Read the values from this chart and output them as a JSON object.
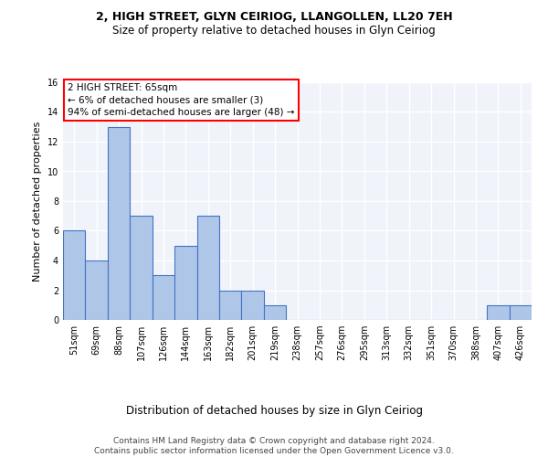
{
  "title": "2, HIGH STREET, GLYN CEIRIOG, LLANGOLLEN, LL20 7EH",
  "subtitle": "Size of property relative to detached houses in Glyn Ceiriog",
  "xlabel": "Distribution of detached houses by size in Glyn Ceiriog",
  "ylabel": "Number of detached properties",
  "bin_labels": [
    "51sqm",
    "69sqm",
    "88sqm",
    "107sqm",
    "126sqm",
    "144sqm",
    "163sqm",
    "182sqm",
    "201sqm",
    "219sqm",
    "238sqm",
    "257sqm",
    "276sqm",
    "295sqm",
    "313sqm",
    "332sqm",
    "351sqm",
    "370sqm",
    "388sqm",
    "407sqm",
    "426sqm"
  ],
  "bar_values": [
    6,
    4,
    13,
    7,
    3,
    5,
    7,
    2,
    2,
    1,
    0,
    0,
    0,
    0,
    0,
    0,
    0,
    0,
    0,
    1,
    1
  ],
  "bar_color": "#aec6e8",
  "bar_edge_color": "#4472c4",
  "ylim": [
    0,
    16
  ],
  "yticks": [
    0,
    2,
    4,
    6,
    8,
    10,
    12,
    14,
    16
  ],
  "annotation_box_text": "2 HIGH STREET: 65sqm\n← 6% of detached houses are smaller (3)\n94% of semi-detached houses are larger (48) →",
  "annotation_box_color": "#ff0000",
  "background_color": "#f0f4fa",
  "footer_text": "Contains HM Land Registry data © Crown copyright and database right 2024.\nContains public sector information licensed under the Open Government Licence v3.0.",
  "grid_color": "#ffffff",
  "title_fontsize": 9,
  "subtitle_fontsize": 8.5,
  "ylabel_fontsize": 8,
  "xlabel_fontsize": 8.5,
  "footer_fontsize": 6.5,
  "tick_fontsize": 7
}
